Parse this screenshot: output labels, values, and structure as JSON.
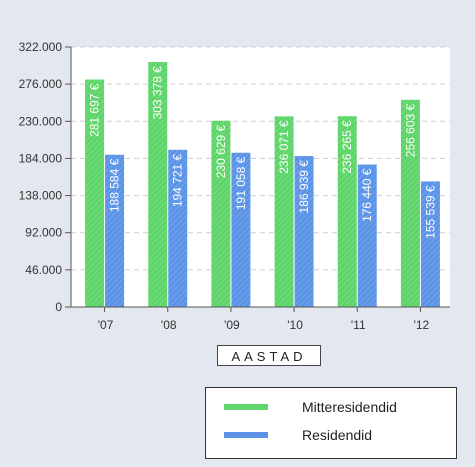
{
  "chart_data": {
    "type": "bar",
    "xlabel": "AASTAD",
    "categories": [
      "'07",
      "'08",
      "'09",
      "'10",
      "'11",
      "'12"
    ],
    "ylim": [
      0,
      322000
    ],
    "yticks": [
      "0",
      "46.000",
      "92.000",
      "138.000",
      "184.000",
      "230.000",
      "276.000",
      "322.000"
    ],
    "grid": true,
    "legend_position": "bottom-right",
    "series": [
      {
        "name": "Mitteresidendid",
        "color": "#5fd46a",
        "values": [
          281697,
          303378,
          230629,
          236071,
          236265,
          256603
        ],
        "labels": [
          "281 697 €",
          "303 378 €",
          "230 629 €",
          "236 071 €",
          "236 265 €",
          "256 603 €"
        ]
      },
      {
        "name": "Residendid",
        "color": "#5b93e6",
        "values": [
          188584,
          194721,
          191058,
          186939,
          176440,
          155539
        ],
        "labels": [
          "188 584 €",
          "194 721 €",
          "191 058 €",
          "186 939 €",
          "176 440 €",
          "155 539 €"
        ]
      }
    ]
  }
}
